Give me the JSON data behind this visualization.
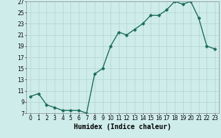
{
  "x": [
    0,
    1,
    2,
    3,
    4,
    5,
    6,
    7,
    8,
    9,
    10,
    11,
    12,
    13,
    14,
    15,
    16,
    17,
    18,
    19,
    20,
    21,
    22,
    23
  ],
  "y": [
    10,
    10.5,
    8.5,
    8,
    7.5,
    7.5,
    7.5,
    7,
    14,
    15,
    19,
    21.5,
    21,
    22,
    23,
    24.5,
    24.5,
    25.5,
    27,
    26.5,
    27,
    24,
    19,
    18.5
  ],
  "line_color": "#1a6b5a",
  "marker_color": "#1a6b5a",
  "bg_color": "#ceecea",
  "grid_color": "#b0d4d0",
  "xlabel": "Humidex (Indice chaleur)",
  "ylabel": "",
  "xlim": [
    -0.5,
    23.5
  ],
  "ylim": [
    7,
    27
  ],
  "yticks": [
    7,
    9,
    11,
    13,
    15,
    17,
    19,
    21,
    23,
    25,
    27
  ],
  "xticks": [
    0,
    1,
    2,
    3,
    4,
    5,
    6,
    7,
    8,
    9,
    10,
    11,
    12,
    13,
    14,
    15,
    16,
    17,
    18,
    19,
    20,
    21,
    22,
    23
  ],
  "xlabel_fontsize": 7,
  "tick_fontsize": 5.5,
  "linewidth": 1.0,
  "markersize": 2.5
}
